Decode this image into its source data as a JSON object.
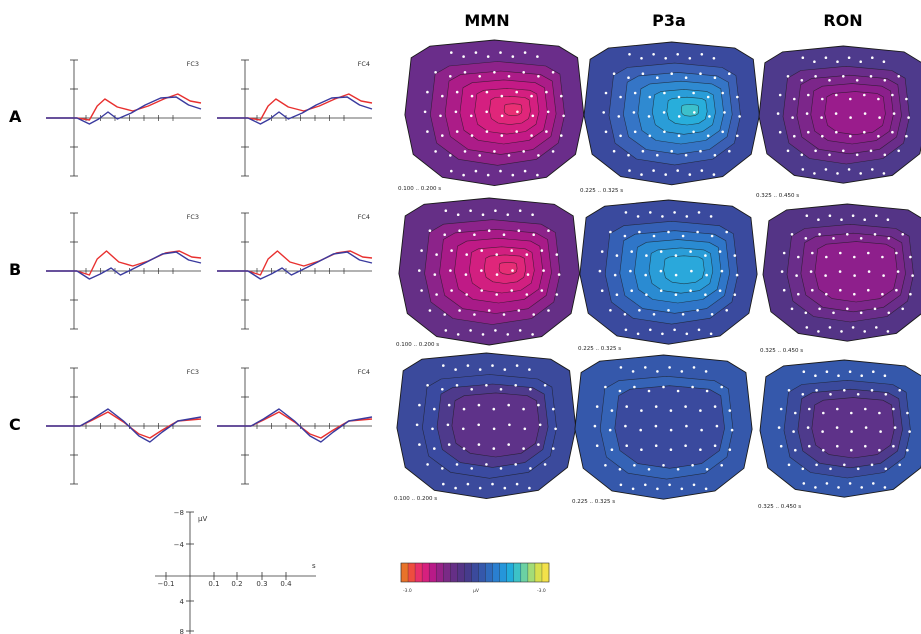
{
  "column_headers": [
    "MMN",
    "P3a",
    "RON"
  ],
  "rows": [
    {
      "label": "A",
      "electrodes": [
        "FC3",
        "FC4"
      ],
      "windows": [
        "0.100 .. 0.200 s",
        "0.225 .. 0.325 s",
        "0.325 .. 0.450 s"
      ]
    },
    {
      "label": "B",
      "electrodes": [
        "FC3",
        "FC4"
      ],
      "windows": [
        "0.100 .. 0.200 s",
        "0.225 .. 0.325 s",
        "0.325 .. 0.450 s"
      ]
    },
    {
      "label": "C",
      "electrodes": [
        "FC3",
        "FC4"
      ],
      "windows": [
        "0.100 .. 0.200 s",
        "0.225 .. 0.325 s",
        "0.325 .. 0.450 s"
      ]
    }
  ],
  "scale": {
    "unit_label": "µV",
    "time_label": "s",
    "y_ticks": [
      "−8",
      "−4",
      "4",
      "8"
    ],
    "x_ticks": [
      "−0.1",
      "0.1",
      "0.2",
      "0.3",
      "0.4"
    ]
  },
  "colorbar": {
    "min_label": "-3.0",
    "unit_label": "µV",
    "max_label": "-3.0",
    "colors": [
      "#e8732a",
      "#ee4d3f",
      "#e8306a",
      "#d6207e",
      "#b81a88",
      "#962287",
      "#7a2a86",
      "#652f86",
      "#543486",
      "#463b8c",
      "#3b4a9c",
      "#3558ab",
      "#2f6bbd",
      "#2a7fd0",
      "#2596da",
      "#22acdb",
      "#3cc2c7",
      "#6bd1a3",
      "#a3dc77",
      "#d6e04f",
      "#f3e14a"
    ]
  },
  "colors": {
    "trace_red": "#e8302f",
    "trace_blue": "#3a3a9e",
    "mmn_a": "#d21f7f",
    "mmn_b": "#c71c82",
    "p3a_a": "#2f6fc9",
    "ron_a": "#8a1f8c",
    "blue_low": "#3058b0"
  }
}
